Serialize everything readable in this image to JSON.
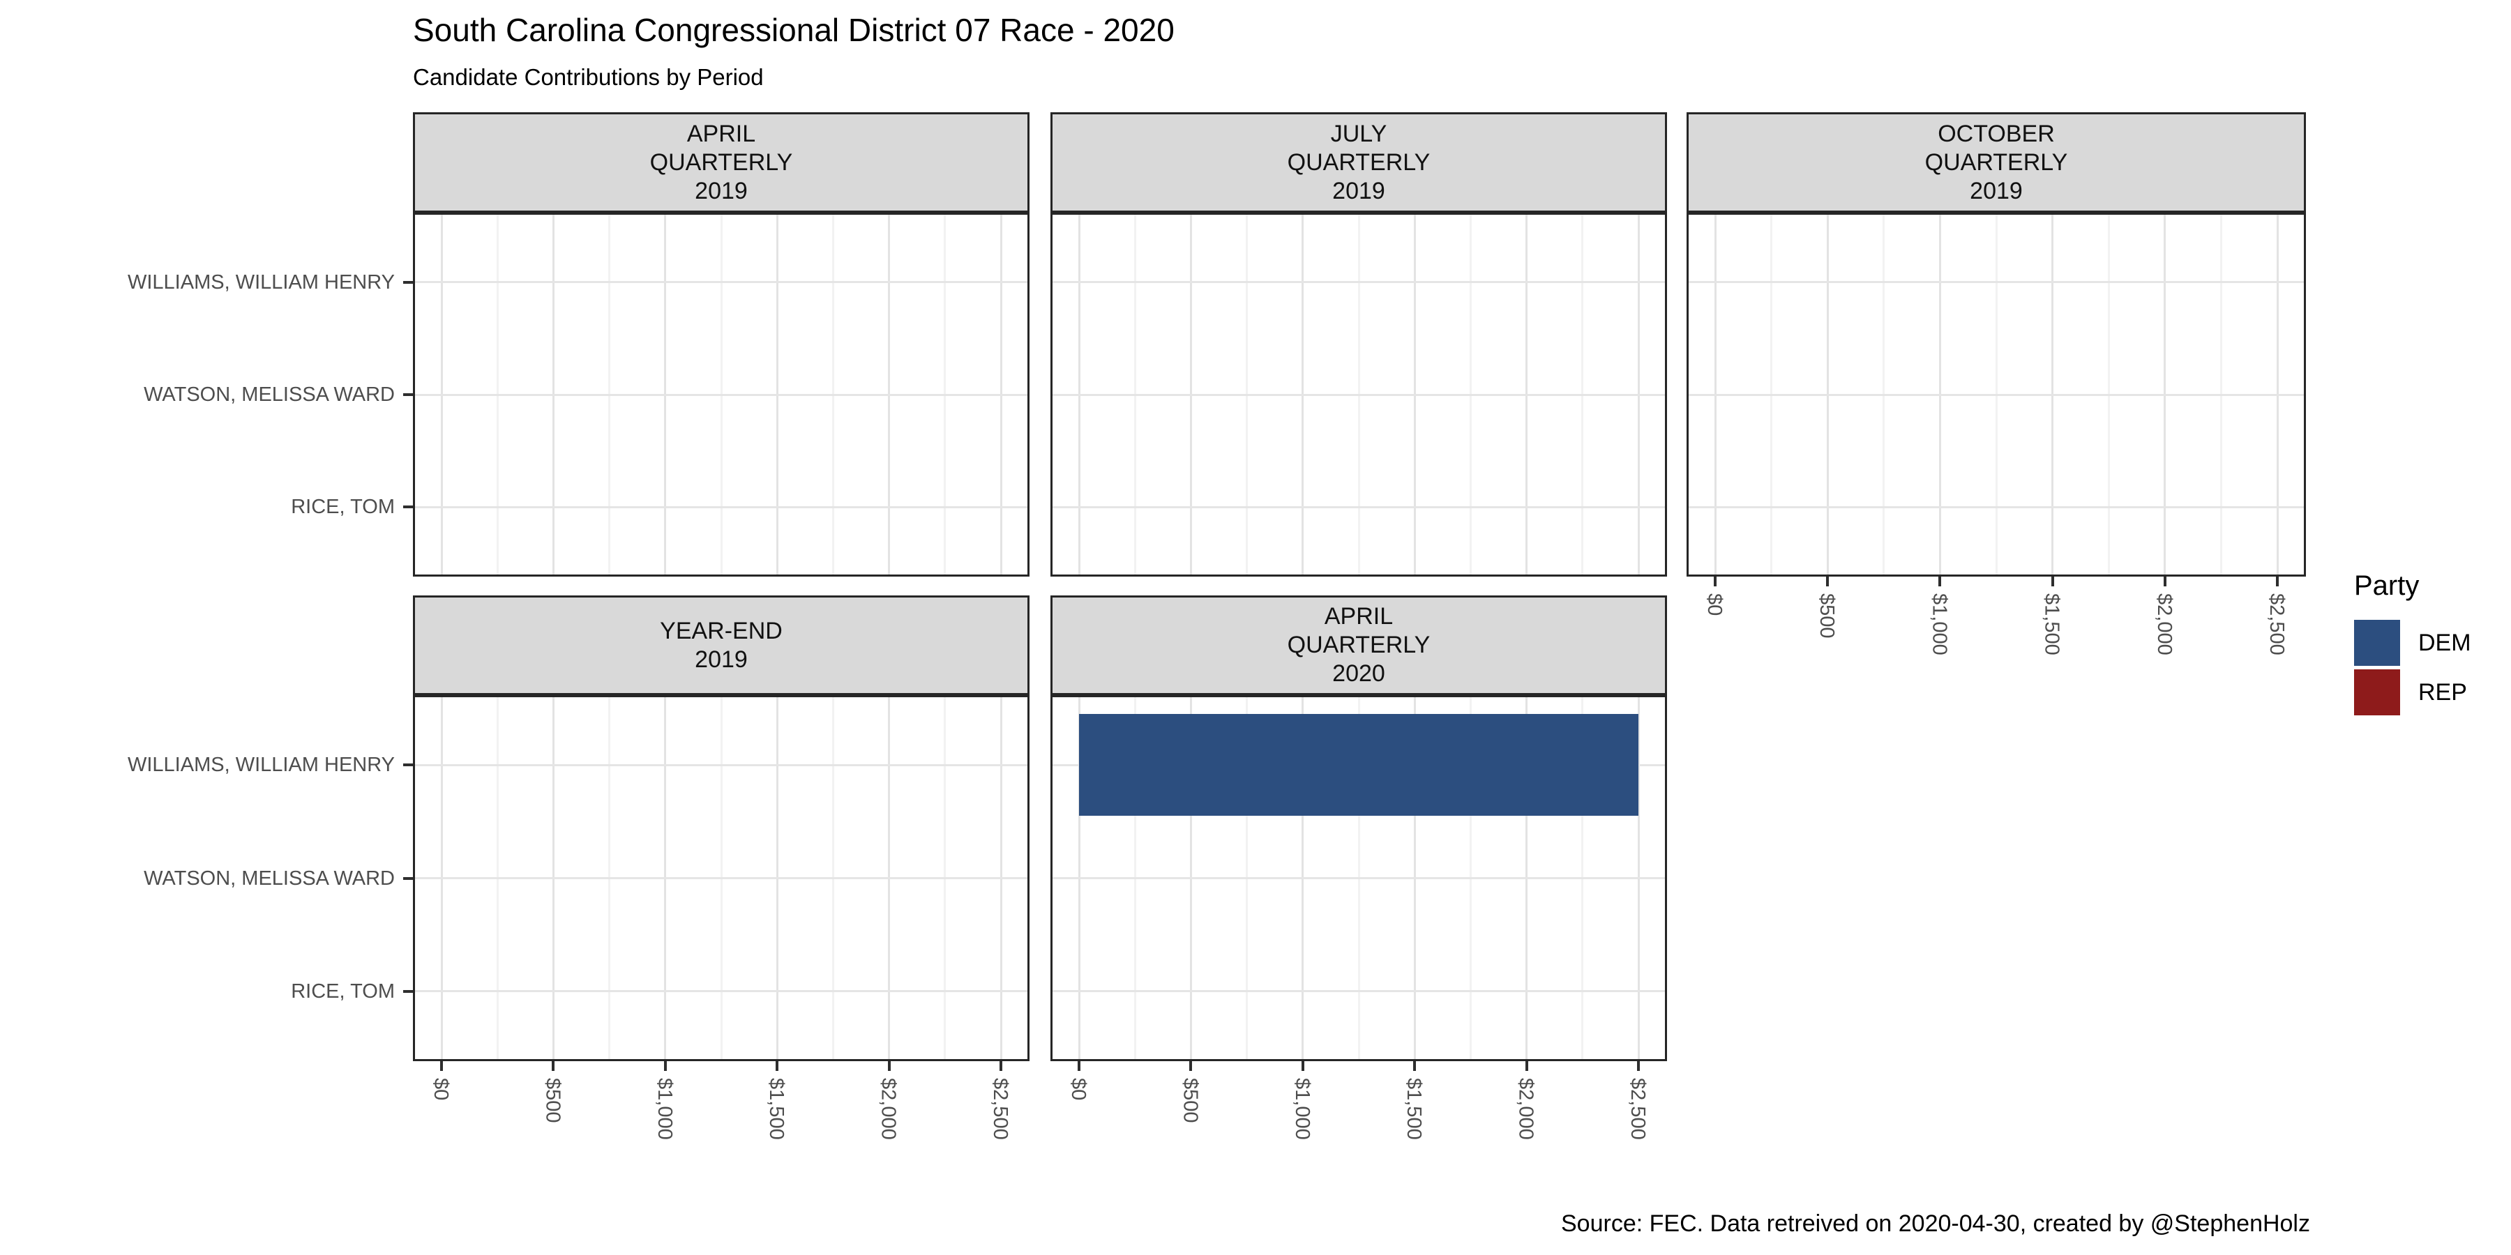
{
  "title": "South Carolina Congressional District 07 Race - 2020",
  "subtitle": "Candidate Contributions by Period",
  "caption": "Source: FEC. Data retreived on 2020-04-30, created by @StephenHolz",
  "legend": {
    "title": "Party",
    "entries": [
      {
        "label": "DEM",
        "color": "#2C4E7F"
      },
      {
        "label": "REP",
        "color": "#8E1B1B"
      }
    ]
  },
  "chart_data": {
    "type": "bar",
    "orientation": "horizontal",
    "title": "South Carolina Congressional District 07 Race - 2020",
    "subtitle": "Candidate Contributions by Period",
    "caption": "Source: FEC. Data retreived on 2020-04-30, created by @StephenHolz",
    "categories": [
      "WILLIAMS, WILLIAM HENRY",
      "WATSON, MELISSA WARD",
      "RICE, TOM"
    ],
    "xlim": [
      0,
      2500
    ],
    "x_tick_values": [
      0,
      500,
      1000,
      1500,
      2000,
      2500
    ],
    "x_tick_labels": [
      "$0",
      "$500",
      "$1,000",
      "$1,500",
      "$2,000",
      "$2,500"
    ],
    "x_minor_step": 250,
    "grid": true,
    "legend_position": "right",
    "legend_title": "Party",
    "series_key": "party",
    "facets": [
      {
        "label_lines": [
          "APRIL",
          "QUARTERLY",
          "2019"
        ],
        "show_x_axis": false,
        "bars": []
      },
      {
        "label_lines": [
          "JULY",
          "QUARTERLY",
          "2019"
        ],
        "show_x_axis": false,
        "bars": []
      },
      {
        "label_lines": [
          "OCTOBER",
          "QUARTERLY",
          "2019"
        ],
        "show_x_axis": true,
        "bars": []
      },
      {
        "label_lines": [
          "YEAR-END",
          "2019"
        ],
        "show_x_axis": true,
        "bars": []
      },
      {
        "label_lines": [
          "APRIL",
          "QUARTERLY",
          "2020"
        ],
        "show_x_axis": true,
        "bars": [
          {
            "category": "WILLIAMS, WILLIAM HENRY",
            "party": "DEM",
            "value": 2500
          }
        ]
      }
    ]
  }
}
